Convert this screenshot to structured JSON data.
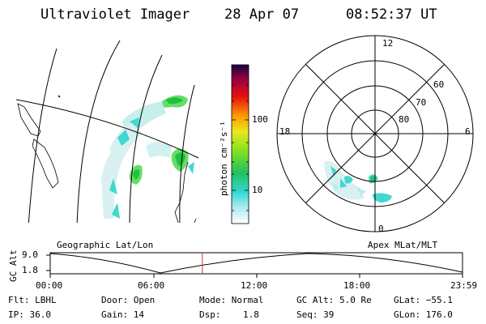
{
  "header": {
    "title": "Ultraviolet Imager",
    "date": "28 Apr 07",
    "time": "08:52:37 UT"
  },
  "colorbar": {
    "unit_label": "photon cm⁻²s⁻¹",
    "ticks": [
      "100",
      "10"
    ]
  },
  "polar": {
    "mlt_labels": [
      "12",
      "18",
      "6",
      "0"
    ],
    "lat_labels": [
      "60",
      "70",
      "80"
    ]
  },
  "timeline": {
    "left_label": "Geographic Lat/Lon",
    "right_label": "Apex MLat/MLT",
    "yaxis_label": "GC Alt",
    "y_ticks": [
      "9.0",
      "1.8"
    ],
    "x_ticks": [
      "00:00",
      "06:00",
      "12:00",
      "18:00",
      "23:59"
    ],
    "current_time_fraction": 0.369
  },
  "info": {
    "flt": "Flt: LBHL",
    "door": "Door: Open",
    "mode": "Mode: Normal",
    "gc_alt": "GC Alt: 5.0 Re",
    "glat": "GLat: −55.1",
    "ip": "IP: 36.0",
    "gain": "Gain: 14",
    "dsp_label": "Dsp:",
    "dsp_value": "1.8",
    "seq": "Seq: 39",
    "glon": "GLon: 176.0"
  }
}
